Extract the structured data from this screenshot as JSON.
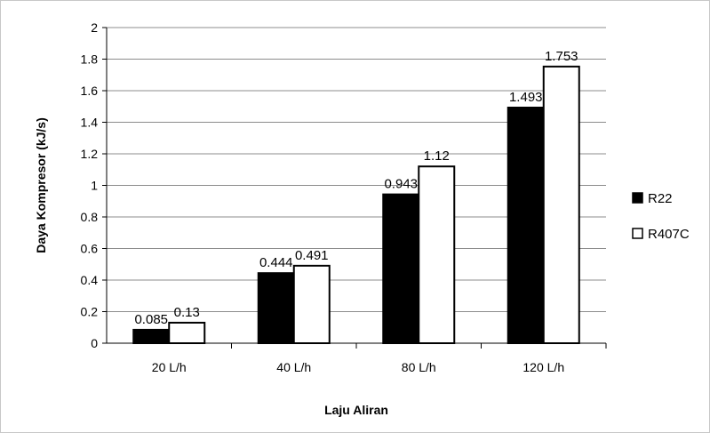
{
  "chart_data": {
    "type": "bar",
    "categories": [
      "20 L/h",
      "40 L/h",
      "80 L/h",
      "120 L/h"
    ],
    "series": [
      {
        "name": "R22",
        "values": [
          0.085,
          0.444,
          0.943,
          1.493
        ],
        "color": "#000000",
        "labels": [
          "0.085",
          "0.444",
          "0.943",
          "1.493"
        ]
      },
      {
        "name": "R407C",
        "values": [
          0.13,
          0.491,
          1.12,
          1.753
        ],
        "color": "#ffffff",
        "labels": [
          "0.13",
          "0.491",
          "1.12",
          "1.753"
        ]
      }
    ],
    "title": "",
    "xlabel": "Laju Aliran",
    "ylabel": "Daya Kompresor (kJ/s)",
    "ylim": [
      0,
      2
    ],
    "yticks": [
      0,
      0.2,
      0.4,
      0.6,
      0.8,
      1,
      1.2,
      1.4,
      1.6,
      1.8,
      2
    ],
    "ytick_labels": [
      "0",
      "0.2",
      "0.4",
      "0.6",
      "0.8",
      "1",
      "1.2",
      "1.4",
      "1.6",
      "1.8",
      "2"
    ],
    "grid": true,
    "legend_position": "right"
  }
}
